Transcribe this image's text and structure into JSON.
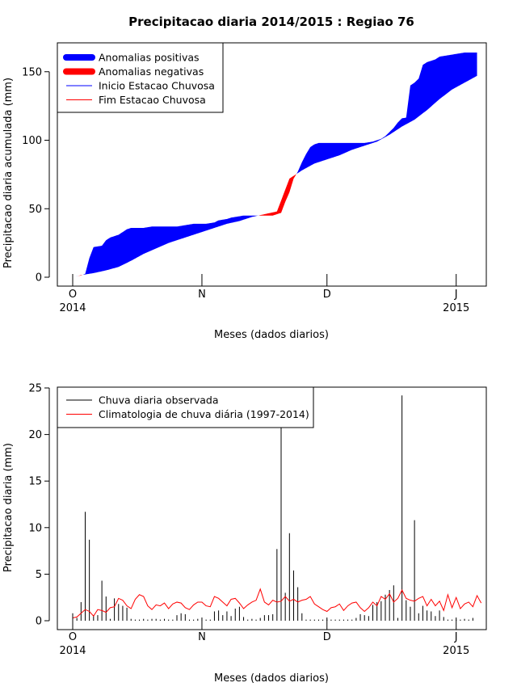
{
  "chart_data": [
    {
      "type": "area",
      "title": "Precipitacao diaria 2014/2015 : Regiao 76",
      "xlabel": "Meses (dados diarios)",
      "ylabel": "Precipitacao diaria acumulada (mm)",
      "xlim": [
        "2014-10-01",
        "2015-01-06"
      ],
      "ylim": [
        0,
        165
      ],
      "y_ticks": [
        0,
        50,
        100,
        150
      ],
      "x_ticks": [
        {
          "date": "2014-10-01",
          "label": "O",
          "sublabel": "2014"
        },
        {
          "date": "2014-11-01",
          "label": "N",
          "sublabel": ""
        },
        {
          "date": "2014-12-01",
          "label": "D",
          "sublabel": ""
        },
        {
          "date": "2015-01-01",
          "label": "J",
          "sublabel": "2015"
        }
      ],
      "legend": {
        "position": "top-left",
        "entries": [
          {
            "label": "Anomalias positivas",
            "color": "#0000ff",
            "style": "thick"
          },
          {
            "label": "Anomalias negativas",
            "color": "#ff0000",
            "style": "thick"
          },
          {
            "label": "Inicio Estacao Chuvosa",
            "color": "#0000ff",
            "style": "thin"
          },
          {
            "label": "Fim Estacao Chuvosa",
            "color": "#ff0000",
            "style": "thin"
          }
        ]
      },
      "series": [
        {
          "name": "observed_cumulative",
          "values": [
            [
              0,
              0
            ],
            [
              1,
              0.8
            ],
            [
              2,
              1.2
            ],
            [
              3,
              2.5
            ],
            [
              4,
              14
            ],
            [
              5,
              22
            ],
            [
              6,
              22.5
            ],
            [
              7,
              23
            ],
            [
              8,
              27
            ],
            [
              9,
              29
            ],
            [
              10,
              30
            ],
            [
              11,
              31
            ],
            [
              12,
              33
            ],
            [
              13,
              35
            ],
            [
              14,
              36
            ],
            [
              15,
              36
            ],
            [
              16,
              36
            ],
            [
              17,
              36
            ],
            [
              18,
              36.5
            ],
            [
              19,
              37
            ],
            [
              20,
              37
            ],
            [
              21,
              37
            ],
            [
              22,
              37
            ],
            [
              23,
              37
            ],
            [
              24,
              37
            ],
            [
              25,
              37
            ],
            [
              26,
              37.5
            ],
            [
              27,
              38
            ],
            [
              28,
              38.5
            ],
            [
              29,
              39
            ],
            [
              30,
              39
            ],
            [
              31,
              39
            ],
            [
              32,
              39
            ],
            [
              33,
              39.5
            ],
            [
              34,
              40
            ],
            [
              35,
              41.5
            ],
            [
              36,
              42
            ],
            [
              37,
              42.5
            ],
            [
              38,
              43.5
            ],
            [
              39,
              44
            ],
            [
              40,
              44.5
            ],
            [
              41,
              45
            ],
            [
              42,
              45
            ],
            [
              43,
              45
            ],
            [
              44,
              45
            ],
            [
              45,
              45
            ],
            [
              46,
              45
            ],
            [
              47,
              45
            ],
            [
              48,
              45
            ],
            [
              49,
              46
            ],
            [
              50,
              47
            ],
            [
              51,
              55
            ],
            [
              52,
              62
            ],
            [
              53,
              72
            ],
            [
              54,
              77
            ],
            [
              55,
              84
            ],
            [
              56,
              90
            ],
            [
              57,
              95
            ],
            [
              58,
              97
            ],
            [
              59,
              98
            ],
            [
              60,
              98
            ],
            [
              61,
              98
            ],
            [
              62,
              98
            ],
            [
              63,
              98
            ],
            [
              64,
              98
            ],
            [
              65,
              98
            ],
            [
              66,
              98
            ],
            [
              67,
              98
            ],
            [
              68,
              98
            ],
            [
              69,
              98
            ],
            [
              70,
              98
            ],
            [
              71,
              98.5
            ],
            [
              72,
              99
            ],
            [
              73,
              100
            ],
            [
              74,
              101
            ],
            [
              75,
              103
            ],
            [
              76,
              106
            ],
            [
              77,
              109
            ],
            [
              78,
              113
            ],
            [
              79,
              116
            ],
            [
              80,
              116.5
            ],
            [
              81,
              140
            ],
            [
              82,
              142
            ],
            [
              83,
              145
            ],
            [
              84,
              155
            ],
            [
              85,
              157
            ],
            [
              86,
              158
            ],
            [
              87,
              159
            ],
            [
              88,
              161
            ],
            [
              89,
              161.5
            ],
            [
              90,
              162
            ],
            [
              91,
              162.5
            ],
            [
              92,
              163
            ],
            [
              93,
              163.5
            ],
            [
              94,
              164
            ],
            [
              95,
              164
            ],
            [
              96,
              164
            ],
            [
              97,
              164
            ]
          ]
        },
        {
          "name": "climatology_cumulative",
          "values": [
            [
              0,
              0
            ],
            [
              2,
              1.5
            ],
            [
              5,
              3
            ],
            [
              8,
              5
            ],
            [
              11,
              7.5
            ],
            [
              14,
              12
            ],
            [
              17,
              17
            ],
            [
              20,
              21
            ],
            [
              23,
              25
            ],
            [
              26,
              28
            ],
            [
              29,
              31
            ],
            [
              32,
              34
            ],
            [
              35,
              37
            ],
            [
              37,
              39
            ],
            [
              40,
              41
            ],
            [
              43,
              44
            ],
            [
              46,
              46
            ],
            [
              49,
              48
            ],
            [
              52,
              72
            ],
            [
              55,
              78
            ],
            [
              58,
              83
            ],
            [
              61,
              86
            ],
            [
              64,
              89
            ],
            [
              67,
              93
            ],
            [
              70,
              96
            ],
            [
              73,
              99
            ],
            [
              76,
              104
            ],
            [
              79,
              110
            ],
            [
              82,
              115
            ],
            [
              85,
              122
            ],
            [
              88,
              130
            ],
            [
              91,
              137
            ],
            [
              94,
              142
            ],
            [
              97,
              147
            ]
          ]
        }
      ]
    },
    {
      "type": "bar",
      "title": "",
      "xlabel": "Meses (dados diarios)",
      "ylabel": "Precipitacao diaria (mm)",
      "xlim": [
        "2014-10-01",
        "2015-01-06"
      ],
      "ylim": [
        0,
        25
      ],
      "y_ticks": [
        0,
        5,
        10,
        15,
        20,
        25
      ],
      "x_ticks": [
        {
          "date": "2014-10-01",
          "label": "O",
          "sublabel": "2014"
        },
        {
          "date": "2014-11-01",
          "label": "N",
          "sublabel": ""
        },
        {
          "date": "2014-12-01",
          "label": "D",
          "sublabel": ""
        },
        {
          "date": "2015-01-01",
          "label": "J",
          "sublabel": "2015"
        }
      ],
      "legend": {
        "position": "top-left",
        "entries": [
          {
            "label": "Chuva diaria observada",
            "color": "#000000"
          },
          {
            "label": "Climatologia de chuva diária (1997-2014)",
            "color": "#ff0000"
          }
        ]
      },
      "series": [
        {
          "name": "Chuva diaria observada",
          "color": "#000000",
          "values": [
            0.8,
            0.3,
            2.0,
            11.7,
            8.7,
            0.6,
            0.6,
            4.3,
            2.6,
            0.2,
            2.4,
            1.8,
            1.6,
            1.4,
            0.2,
            0.1,
            0.1,
            0.2,
            0.1,
            0.2,
            0.2,
            0.1,
            0.2,
            0.1,
            0.1,
            0.6,
            0.8,
            0.7,
            0.1,
            0.1,
            0.2,
            0.1,
            0.1,
            0.1,
            1.0,
            1.1,
            0.6,
            1.0,
            0.5,
            1.3,
            1.5,
            0.4,
            0.1,
            0.2,
            0.1,
            0.3,
            0.6,
            0.6,
            0.7,
            7.7,
            20.9,
            3.0,
            9.4,
            5.4,
            3.6,
            0.8,
            0.1,
            0.1,
            0.1,
            0.1,
            0.1,
            0.1,
            0.1,
            0.1,
            0.1,
            0.1,
            0.1,
            0.1,
            0.3,
            0.7,
            0.6,
            0.5,
            1.7,
            2.0,
            2.1,
            2.8,
            3.3,
            3.8,
            0.3,
            24.2,
            2.2,
            1.5,
            10.8,
            0.8,
            1.6,
            1.1,
            1.0,
            0.5,
            1.1,
            0.4,
            0.1,
            0.1,
            0.1,
            0.1,
            0.2,
            0.1,
            0.3
          ]
        },
        {
          "name": "Climatologia de chuva diária (1997-2014)",
          "color": "#ff0000",
          "values": [
            0.3,
            0.4,
            0.8,
            1.2,
            1.0,
            0.5,
            1.2,
            1.1,
            0.9,
            1.4,
            1.5,
            2.4,
            2.2,
            1.6,
            1.3,
            2.3,
            2.8,
            2.6,
            1.6,
            1.2,
            1.7,
            1.6,
            1.9,
            1.3,
            1.8,
            2.0,
            1.9,
            1.4,
            1.2,
            1.7,
            2.0,
            2.0,
            1.6,
            1.5,
            2.6,
            2.4,
            2.0,
            1.6,
            2.3,
            2.4,
            1.9,
            1.3,
            1.7,
            2.0,
            2.2,
            3.4,
            2.0,
            1.7,
            2.2,
            2.0,
            2.1,
            2.6,
            2.1,
            2.3,
            2.0,
            2.2,
            2.3,
            2.6,
            1.8,
            1.5,
            1.2,
            1.0,
            1.4,
            1.5,
            1.8,
            1.1,
            1.6,
            1.9,
            2.0,
            1.4,
            1.0,
            1.4,
            2.0,
            1.6,
            2.6,
            2.3,
            2.9,
            2.0,
            2.4,
            3.3,
            2.4,
            2.2,
            2.1,
            2.4,
            2.6,
            1.6,
            2.3,
            1.6,
            2.1,
            1.1,
            2.8,
            1.4,
            2.5,
            1.3,
            1.8,
            2.0,
            1.5,
            2.7,
            1.9
          ]
        }
      ]
    }
  ]
}
